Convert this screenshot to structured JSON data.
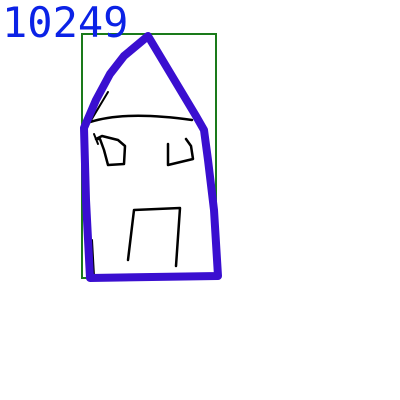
{
  "label": {
    "text": "10249",
    "color": "#0b22e6"
  },
  "colors": {
    "bounding_box": "#1a7a1a",
    "house_outline": "#3a0fd0",
    "pen_strokes": "#000000",
    "background": "#ffffff"
  },
  "sketch": {
    "subject": "house-drawing",
    "parts": [
      "roof",
      "walls",
      "left-window",
      "right-window",
      "door",
      "roof-line"
    ]
  }
}
